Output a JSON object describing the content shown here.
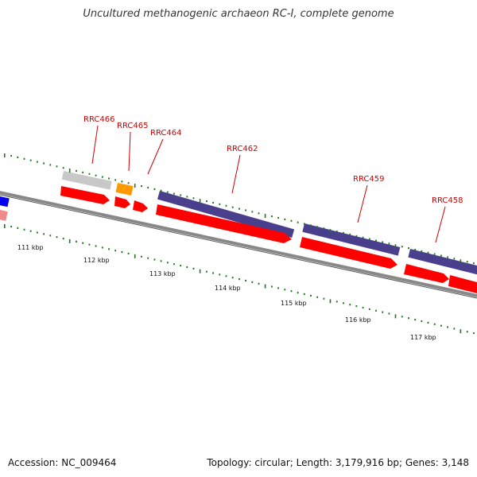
{
  "title": "Uncultured methanogenic archaeon RC-I, complete genome",
  "footer": {
    "accession": "Accession: NC_009464",
    "stats": "Topology: circular; Length: 3,179,916 bp; Genes: 3,148"
  },
  "gene_labels": [
    "RRC466",
    "RRC465",
    "RRC464",
    "RRC462",
    "RRC459",
    "RRC458"
  ],
  "kbp_labels": [
    "111 kbp",
    "112 kbp",
    "113 kbp",
    "114 kbp",
    "115 kbp",
    "116 kbp",
    "117 kbp"
  ],
  "colors": {
    "forward_gene": "#ff0000",
    "cds_purple": "#4a3f8c",
    "backbone": "#888888",
    "tick": "#1a7a1a",
    "label": "#cc0000"
  }
}
